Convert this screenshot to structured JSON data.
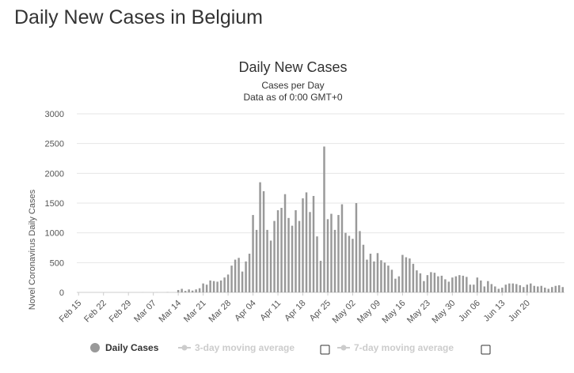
{
  "page": {
    "heading": "Daily New Cases in Belgium"
  },
  "chart_data": {
    "type": "bar",
    "title": "Daily New Cases",
    "subtitle_lines": [
      "Cases per Day",
      "Data as of 0:00 GMT+0"
    ],
    "xlabel": "",
    "ylabel": "Novel Coronavirus Daily Cases",
    "ylim": [
      0,
      3000
    ],
    "yticks": [
      0,
      500,
      1000,
      1500,
      2000,
      2500,
      3000
    ],
    "grid": true,
    "legend_position": "bottom",
    "colors": {
      "bar": "#999999",
      "grid": "#e6e6e6",
      "legend_inactive": "#cccccc",
      "legend_active": "#333333"
    },
    "x_tick_labels": [
      "Feb 15",
      "Feb 22",
      "Feb 29",
      "Mar 07",
      "Mar 14",
      "Mar 21",
      "Mar 28",
      "Apr 04",
      "Apr 11",
      "Apr 18",
      "Apr 25",
      "May 02",
      "May 09",
      "May 16",
      "May 23",
      "May 30",
      "Jun 06",
      "Jun 13",
      "Jun 20"
    ],
    "x_tick_every": 7,
    "first_date": "Feb 15",
    "series": [
      {
        "name": "Daily Cases",
        "values": [
          0,
          0,
          0,
          0,
          0,
          0,
          0,
          0,
          0,
          0,
          0,
          0,
          0,
          0,
          0,
          0,
          0,
          0,
          1,
          0,
          0,
          0,
          1,
          0,
          0,
          3,
          0,
          0,
          40,
          60,
          25,
          50,
          30,
          50,
          70,
          150,
          130,
          200,
          190,
          180,
          200,
          250,
          300,
          450,
          550,
          580,
          350,
          520,
          650,
          1300,
          1050,
          1850,
          1700,
          1050,
          870,
          1200,
          1380,
          1420,
          1650,
          1250,
          1120,
          1380,
          1200,
          1580,
          1680,
          1350,
          1620,
          940,
          530,
          2450,
          1230,
          1320,
          1050,
          1300,
          1480,
          1000,
          950,
          900,
          1500,
          1030,
          800,
          550,
          650,
          520,
          660,
          540,
          500,
          450,
          380,
          230,
          270,
          630,
          590,
          570,
          480,
          370,
          320,
          190,
          290,
          340,
          330,
          270,
          280,
          220,
          180,
          250,
          270,
          290,
          280,
          260,
          130,
          130,
          250,
          200,
          100,
          190,
          140,
          100,
          60,
          80,
          130,
          150,
          150,
          140,
          120,
          90,
          130,
          150,
          110,
          100,
          110,
          80,
          60,
          90,
          110,
          120,
          90
        ]
      },
      {
        "name": "3-day moving average",
        "values": []
      },
      {
        "name": "7-day moving average",
        "values": []
      }
    ]
  }
}
